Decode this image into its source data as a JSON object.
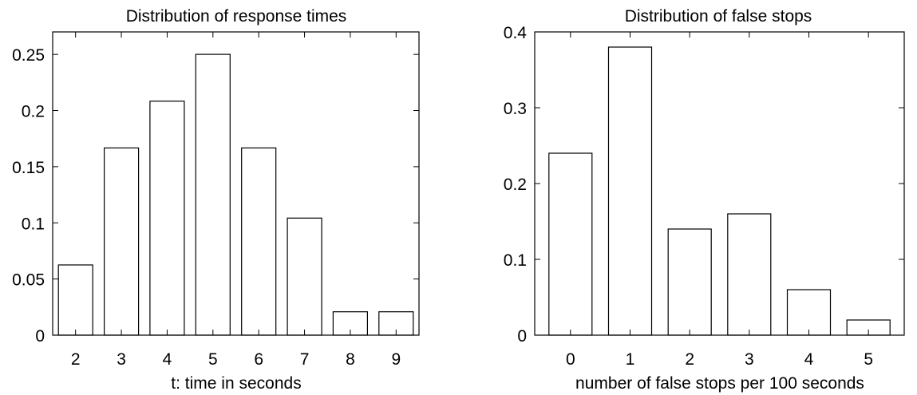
{
  "chart_data": [
    {
      "type": "bar",
      "title": "Distribution of response times",
      "xlabel": "t: time in seconds",
      "ylabel": "",
      "categories": [
        "2",
        "3",
        "4",
        "5",
        "6",
        "7",
        "8",
        "9"
      ],
      "values": [
        0.0625,
        0.1667,
        0.2083,
        0.25,
        0.1667,
        0.1042,
        0.0208,
        0.0208
      ],
      "xlim": [
        1.5,
        9.5
      ],
      "ylim": [
        0,
        0.27
      ],
      "yticks": [
        0,
        0.05,
        0.1,
        0.15,
        0.2,
        0.25
      ],
      "ytick_labels": [
        "0",
        "0.05",
        "0.1",
        "0.15",
        "0.2",
        "0.25"
      ],
      "bar_fill": "#ffffff",
      "bar_stroke": "#000000",
      "grid": false,
      "legend": "none"
    },
    {
      "type": "bar",
      "title": "Distribution of false stops",
      "xlabel": "number of false stops per 100 seconds",
      "ylabel": "",
      "categories": [
        "0",
        "1",
        "2",
        "3",
        "4",
        "5"
      ],
      "values": [
        0.24,
        0.38,
        0.14,
        0.16,
        0.06,
        0.02
      ],
      "xlim": [
        -0.6,
        5.6
      ],
      "ylim": [
        0,
        0.4
      ],
      "yticks": [
        0,
        0.1,
        0.2,
        0.3,
        0.4
      ],
      "ytick_labels": [
        "0",
        "0.1",
        "0.2",
        "0.3",
        "0.4"
      ],
      "bar_fill": "#ffffff",
      "bar_stroke": "#000000",
      "grid": false,
      "legend": "none"
    }
  ]
}
